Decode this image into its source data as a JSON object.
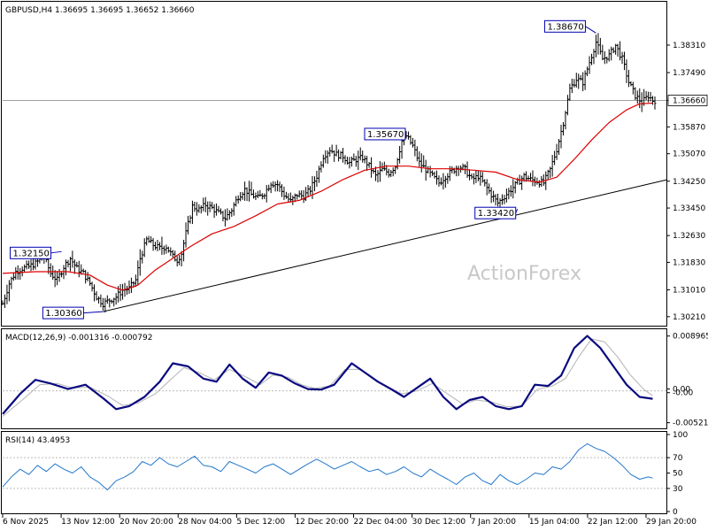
{
  "chart_data": {
    "type": "line",
    "symbol_header": "GBPUSD,H4  1.36695 1.36695 1.36652 1.36660",
    "watermark": "ActionForex",
    "x_labels": [
      "6 Nov 2025",
      "13 Nov 12:00",
      "20 Nov 20:00",
      "28 Nov 04:00",
      "5 Dec 12:00",
      "12 Dec 20:00",
      "22 Dec 04:00",
      "30 Dec 12:00",
      "7 Jan 20:00",
      "15 Jan 04:00",
      "22 Jan 12:00",
      "29 Jan 20:00"
    ],
    "colors": {
      "price": "#000000",
      "ma": "#dd0000",
      "trendline": "#000000",
      "macd": "#0a0a80",
      "signal": "#b4b4b4",
      "rsi": "#2277cc",
      "callout": "#0000b0"
    },
    "price_pane": {
      "ylim": [
        1.3002,
        1.3918
      ],
      "y_ticks": [
        "1.38310",
        "1.37490",
        "1.36660",
        "1.35870",
        "1.35070",
        "1.34250",
        "1.33450",
        "1.32630",
        "1.31830",
        "1.31010",
        "1.30210"
      ],
      "y_tick_values": [
        1.3831,
        1.3749,
        1.3666,
        1.3587,
        1.3507,
        1.3425,
        1.3345,
        1.3263,
        1.3183,
        1.3101,
        1.3021
      ],
      "current_price": "1.36660",
      "current_price_value": 1.3666,
      "bar_high_low_pct": [
        0.002,
        0.0035,
        0.0045,
        0.0055,
        0.0045,
        0.0032,
        0.0035,
        0.003,
        0.0032,
        0.0035
      ],
      "close_path": [
        [
          0,
          1.306
        ],
        [
          3,
          1.312
        ],
        [
          6,
          1.3155
        ],
        [
          9,
          1.3165
        ],
        [
          12,
          1.317
        ],
        [
          15,
          1.318
        ],
        [
          19,
          1.32
        ],
        [
          22,
          1.315
        ],
        [
          25,
          1.313
        ],
        [
          28,
          1.317
        ],
        [
          31,
          1.3195
        ],
        [
          34,
          1.3165
        ],
        [
          37,
          1.315
        ],
        [
          40,
          1.312
        ],
        [
          43,
          1.308
        ],
        [
          46,
          1.306
        ],
        [
          49,
          1.307
        ],
        [
          52,
          1.308
        ],
        [
          55,
          1.31
        ],
        [
          58,
          1.3105
        ],
        [
          61,
          1.313
        ],
        [
          63,
          1.3195
        ],
        [
          66,
          1.325
        ],
        [
          69,
          1.3235
        ],
        [
          72,
          1.3225
        ],
        [
          75,
          1.323
        ],
        [
          78,
          1.32
        ],
        [
          80,
          1.319
        ],
        [
          82,
          1.321
        ],
        [
          84,
          1.327
        ],
        [
          87,
          1.335
        ],
        [
          90,
          1.334
        ],
        [
          93,
          1.3355
        ],
        [
          96,
          1.3345
        ],
        [
          99,
          1.333
        ],
        [
          102,
          1.3315
        ],
        [
          105,
          1.334
        ],
        [
          108,
          1.338
        ],
        [
          111,
          1.34
        ],
        [
          114,
          1.3385
        ],
        [
          117,
          1.3375
        ],
        [
          120,
          1.339
        ],
        [
          123,
          1.342
        ],
        [
          126,
          1.3415
        ],
        [
          129,
          1.3385
        ],
        [
          132,
          1.3365
        ],
        [
          135,
          1.3385
        ],
        [
          138,
          1.338
        ],
        [
          141,
          1.34
        ],
        [
          144,
          1.344
        ],
        [
          147,
          1.35
        ],
        [
          150,
          1.352
        ],
        [
          153,
          1.3505
        ],
        [
          156,
          1.35
        ],
        [
          159,
          1.348
        ],
        [
          162,
          1.349
        ],
        [
          165,
          1.3495
        ],
        [
          168,
          1.347
        ],
        [
          171,
          1.344
        ],
        [
          174,
          1.346
        ],
        [
          177,
          1.345
        ],
        [
          180,
          1.347
        ],
        [
          183,
          1.3545
        ],
        [
          185,
          1.356
        ],
        [
          188,
          1.353
        ],
        [
          191,
          1.348
        ],
        [
          194,
          1.346
        ],
        [
          197,
          1.344
        ],
        [
          200,
          1.342
        ],
        [
          203,
          1.344
        ],
        [
          206,
          1.3455
        ],
        [
          209,
          1.347
        ],
        [
          212,
          1.346
        ],
        [
          215,
          1.343
        ],
        [
          218,
          1.344
        ],
        [
          221,
          1.3415
        ],
        [
          224,
          1.3385
        ],
        [
          227,
          1.336
        ],
        [
          230,
          1.338
        ],
        [
          233,
          1.34
        ],
        [
          236,
          1.342
        ],
        [
          239,
          1.344
        ],
        [
          242,
          1.343
        ],
        [
          245,
          1.3425
        ],
        [
          248,
          1.342
        ],
        [
          251,
          1.346
        ],
        [
          254,
          1.352
        ],
        [
          257,
          1.36
        ],
        [
          260,
          1.37
        ],
        [
          263,
          1.373
        ],
        [
          266,
          1.372
        ],
        [
          269,
          1.378
        ],
        [
          272,
          1.384
        ],
        [
          275,
          1.379
        ],
        [
          278,
          1.38
        ],
        [
          281,
          1.383
        ],
        [
          284,
          1.379
        ],
        [
          287,
          1.372
        ],
        [
          290,
          1.368
        ],
        [
          293,
          1.366
        ],
        [
          296,
          1.368
        ],
        [
          298,
          1.3666
        ]
      ],
      "ma_path": [
        [
          0,
          1.315
        ],
        [
          15,
          1.3155
        ],
        [
          30,
          1.3155
        ],
        [
          40,
          1.3145
        ],
        [
          48,
          1.3115
        ],
        [
          55,
          1.31
        ],
        [
          62,
          1.3115
        ],
        [
          70,
          1.316
        ],
        [
          78,
          1.3195
        ],
        [
          86,
          1.323
        ],
        [
          96,
          1.3268
        ],
        [
          106,
          1.329
        ],
        [
          116,
          1.3322
        ],
        [
          126,
          1.3357
        ],
        [
          136,
          1.3368
        ],
        [
          146,
          1.3395
        ],
        [
          156,
          1.343
        ],
        [
          166,
          1.3458
        ],
        [
          176,
          1.347
        ],
        [
          186,
          1.347
        ],
        [
          196,
          1.3462
        ],
        [
          206,
          1.3462
        ],
        [
          216,
          1.3458
        ],
        [
          226,
          1.3452
        ],
        [
          236,
          1.343
        ],
        [
          246,
          1.3422
        ],
        [
          254,
          1.3437
        ],
        [
          262,
          1.349
        ],
        [
          270,
          1.3548
        ],
        [
          278,
          1.36
        ],
        [
          286,
          1.3638
        ],
        [
          292,
          1.3656
        ],
        [
          298,
          1.3658
        ]
      ],
      "trendline": {
        "from": [
          46,
          1.3036
        ],
        "to": [
          305,
          1.343
        ]
      },
      "callouts": [
        {
          "label": "1.38670",
          "value": 1.3867,
          "bar": 272,
          "box_offset": [
            -58,
            -14
          ]
        },
        {
          "label": "1.35670",
          "value": 1.3567,
          "bar": 185,
          "box_offset": [
            -47,
            -6
          ]
        },
        {
          "label": "1.33420",
          "value": 1.3342,
          "bar": 236,
          "box_offset": [
            -48,
            -2
          ]
        },
        {
          "label": "1.32150",
          "value": 1.3215,
          "bar": 27,
          "box_offset": [
            -58,
            -5
          ]
        },
        {
          "label": "1.30360",
          "value": 1.3036,
          "bar": 46,
          "box_offset": [
            -68,
            -5
          ]
        }
      ]
    },
    "macd_pane": {
      "title": "MACD(12,26,9) -0.001316 -0.000792",
      "ylim": [
        -0.0057,
        0.0095
      ],
      "y_ticks": [
        "0.008965",
        "0.00",
        "-0.00",
        "-0.005215"
      ],
      "y_tick_values": [
        0.008965,
        0.0003,
        -0.0003,
        -0.005215
      ],
      "zero_line": 0,
      "macd_path": [
        [
          0,
          -0.0038
        ],
        [
          8,
          -0.0005
        ],
        [
          15,
          0.0018
        ],
        [
          22,
          0.0012
        ],
        [
          30,
          0.0003
        ],
        [
          38,
          0.001
        ],
        [
          46,
          -0.0012
        ],
        [
          52,
          -0.003
        ],
        [
          58,
          -0.0025
        ],
        [
          65,
          -0.001
        ],
        [
          72,
          0.0015
        ],
        [
          78,
          0.0045
        ],
        [
          85,
          0.004
        ],
        [
          92,
          0.002
        ],
        [
          98,
          0.0015
        ],
        [
          104,
          0.0043
        ],
        [
          110,
          0.002
        ],
        [
          116,
          0.0005
        ],
        [
          122,
          0.003
        ],
        [
          128,
          0.0025
        ],
        [
          134,
          0.0012
        ],
        [
          140,
          0.0003
        ],
        [
          146,
          0.0002
        ],
        [
          152,
          0.001
        ],
        [
          160,
          0.0045
        ],
        [
          166,
          0.003
        ],
        [
          172,
          0.0015
        ],
        [
          178,
          0.0003
        ],
        [
          184,
          -0.001
        ],
        [
          190,
          0.0005
        ],
        [
          196,
          0.002
        ],
        [
          202,
          -0.001
        ],
        [
          208,
          -0.003
        ],
        [
          214,
          -0.0015
        ],
        [
          220,
          -0.001
        ],
        [
          226,
          -0.0025
        ],
        [
          232,
          -0.003
        ],
        [
          238,
          -0.0025
        ],
        [
          244,
          0.001
        ],
        [
          250,
          0.0008
        ],
        [
          256,
          0.0025
        ],
        [
          262,
          0.007
        ],
        [
          268,
          0.009
        ],
        [
          274,
          0.007
        ],
        [
          280,
          0.004
        ],
        [
          286,
          0.001
        ],
        [
          292,
          -0.001
        ],
        [
          298,
          -0.0013
        ]
      ],
      "signal_path": [
        [
          0,
          -0.0042
        ],
        [
          10,
          -0.0012
        ],
        [
          17,
          0.001
        ],
        [
          25,
          0.0012
        ],
        [
          32,
          0.0005
        ],
        [
          40,
          0.0006
        ],
        [
          48,
          -0.0008
        ],
        [
          55,
          -0.0024
        ],
        [
          62,
          -0.002
        ],
        [
          70,
          -0.0005
        ],
        [
          76,
          0.0015
        ],
        [
          83,
          0.0038
        ],
        [
          90,
          0.003
        ],
        [
          97,
          0.0018
        ],
        [
          104,
          0.0035
        ],
        [
          112,
          0.0022
        ],
        [
          118,
          0.001
        ],
        [
          124,
          0.0026
        ],
        [
          131,
          0.0022
        ],
        [
          137,
          0.001
        ],
        [
          143,
          0.0004
        ],
        [
          150,
          0.0008
        ],
        [
          157,
          0.0035
        ],
        [
          164,
          0.0035
        ],
        [
          170,
          0.002
        ],
        [
          176,
          0.0008
        ],
        [
          183,
          -0.0005
        ],
        [
          190,
          0.0
        ],
        [
          197,
          0.0012
        ],
        [
          204,
          -0.0005
        ],
        [
          211,
          -0.0022
        ],
        [
          217,
          -0.0015
        ],
        [
          224,
          -0.0018
        ],
        [
          231,
          -0.0026
        ],
        [
          238,
          -0.0025
        ],
        [
          245,
          0.0002
        ],
        [
          252,
          0.0008
        ],
        [
          258,
          0.002
        ],
        [
          264,
          0.0055
        ],
        [
          270,
          0.0085
        ],
        [
          276,
          0.008
        ],
        [
          282,
          0.0055
        ],
        [
          288,
          0.0025
        ],
        [
          294,
          0.0002
        ],
        [
          298,
          -0.0008
        ]
      ]
    },
    "rsi_pane": {
      "title": "RSI(14) 43.4953",
      "ylim": [
        0,
        100
      ],
      "y_ticks": [
        "100",
        "70",
        "50",
        "30",
        "0"
      ],
      "y_tick_values": [
        100,
        70,
        50,
        30,
        0
      ],
      "levels": [
        70,
        30
      ],
      "rsi_path": [
        [
          0,
          32
        ],
        [
          4,
          45
        ],
        [
          8,
          55
        ],
        [
          12,
          48
        ],
        [
          16,
          60
        ],
        [
          20,
          52
        ],
        [
          24,
          62
        ],
        [
          28,
          55
        ],
        [
          32,
          50
        ],
        [
          36,
          58
        ],
        [
          40,
          45
        ],
        [
          44,
          38
        ],
        [
          48,
          28
        ],
        [
          52,
          40
        ],
        [
          56,
          45
        ],
        [
          60,
          52
        ],
        [
          64,
          65
        ],
        [
          68,
          60
        ],
        [
          72,
          70
        ],
        [
          76,
          62
        ],
        [
          80,
          58
        ],
        [
          84,
          65
        ],
        [
          88,
          72
        ],
        [
          92,
          60
        ],
        [
          96,
          58
        ],
        [
          100,
          52
        ],
        [
          104,
          65
        ],
        [
          108,
          60
        ],
        [
          112,
          55
        ],
        [
          116,
          50
        ],
        [
          120,
          58
        ],
        [
          124,
          62
        ],
        [
          128,
          55
        ],
        [
          132,
          48
        ],
        [
          136,
          55
        ],
        [
          140,
          62
        ],
        [
          144,
          68
        ],
        [
          148,
          62
        ],
        [
          152,
          55
        ],
        [
          156,
          60
        ],
        [
          160,
          65
        ],
        [
          164,
          58
        ],
        [
          168,
          52
        ],
        [
          172,
          55
        ],
        [
          176,
          48
        ],
        [
          180,
          52
        ],
        [
          184,
          58
        ],
        [
          188,
          50
        ],
        [
          192,
          45
        ],
        [
          196,
          55
        ],
        [
          200,
          48
        ],
        [
          204,
          42
        ],
        [
          208,
          35
        ],
        [
          212,
          45
        ],
        [
          216,
          50
        ],
        [
          220,
          40
        ],
        [
          224,
          35
        ],
        [
          228,
          48
        ],
        [
          232,
          40
        ],
        [
          236,
          35
        ],
        [
          240,
          42
        ],
        [
          244,
          50
        ],
        [
          248,
          48
        ],
        [
          252,
          58
        ],
        [
          256,
          55
        ],
        [
          260,
          65
        ],
        [
          264,
          80
        ],
        [
          268,
          88
        ],
        [
          272,
          82
        ],
        [
          276,
          78
        ],
        [
          280,
          70
        ],
        [
          284,
          60
        ],
        [
          288,
          48
        ],
        [
          292,
          42
        ],
        [
          296,
          45
        ],
        [
          298,
          43.5
        ]
      ]
    }
  }
}
